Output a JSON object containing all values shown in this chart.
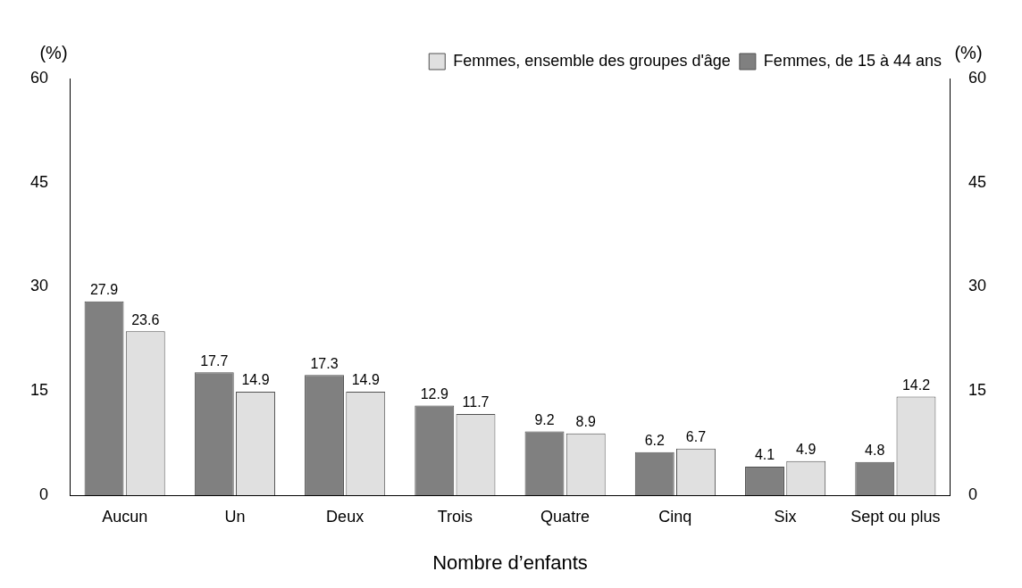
{
  "chart_data": {
    "type": "bar",
    "xlabel": "Nombre d’enfants",
    "ylabel": "(%)",
    "y2label": "(%)",
    "categories": [
      "Aucun",
      "Un",
      "Deux",
      "Trois",
      "Quatre",
      "Cinq",
      "Six",
      "Sept ou plus"
    ],
    "series": [
      {
        "name": "Femmes, de 15 à 44 ans",
        "color": "#808080",
        "values": [
          27.9,
          17.7,
          17.3,
          12.9,
          9.2,
          6.2,
          4.1,
          4.8
        ]
      },
      {
        "name": "Femmes, ensemble des groupes d'âge",
        "color": "#e0e0e0",
        "values": [
          23.6,
          14.9,
          14.9,
          11.7,
          8.9,
          6.7,
          4.9,
          14.2
        ]
      }
    ],
    "ylim": [
      0,
      60
    ],
    "yticks": [
      0,
      15,
      30,
      45,
      60
    ],
    "y2lim": [
      0,
      60
    ],
    "y2ticks": [
      0,
      15,
      30,
      45,
      60
    ],
    "data_labels": true,
    "grid": false,
    "legend": "top right"
  }
}
